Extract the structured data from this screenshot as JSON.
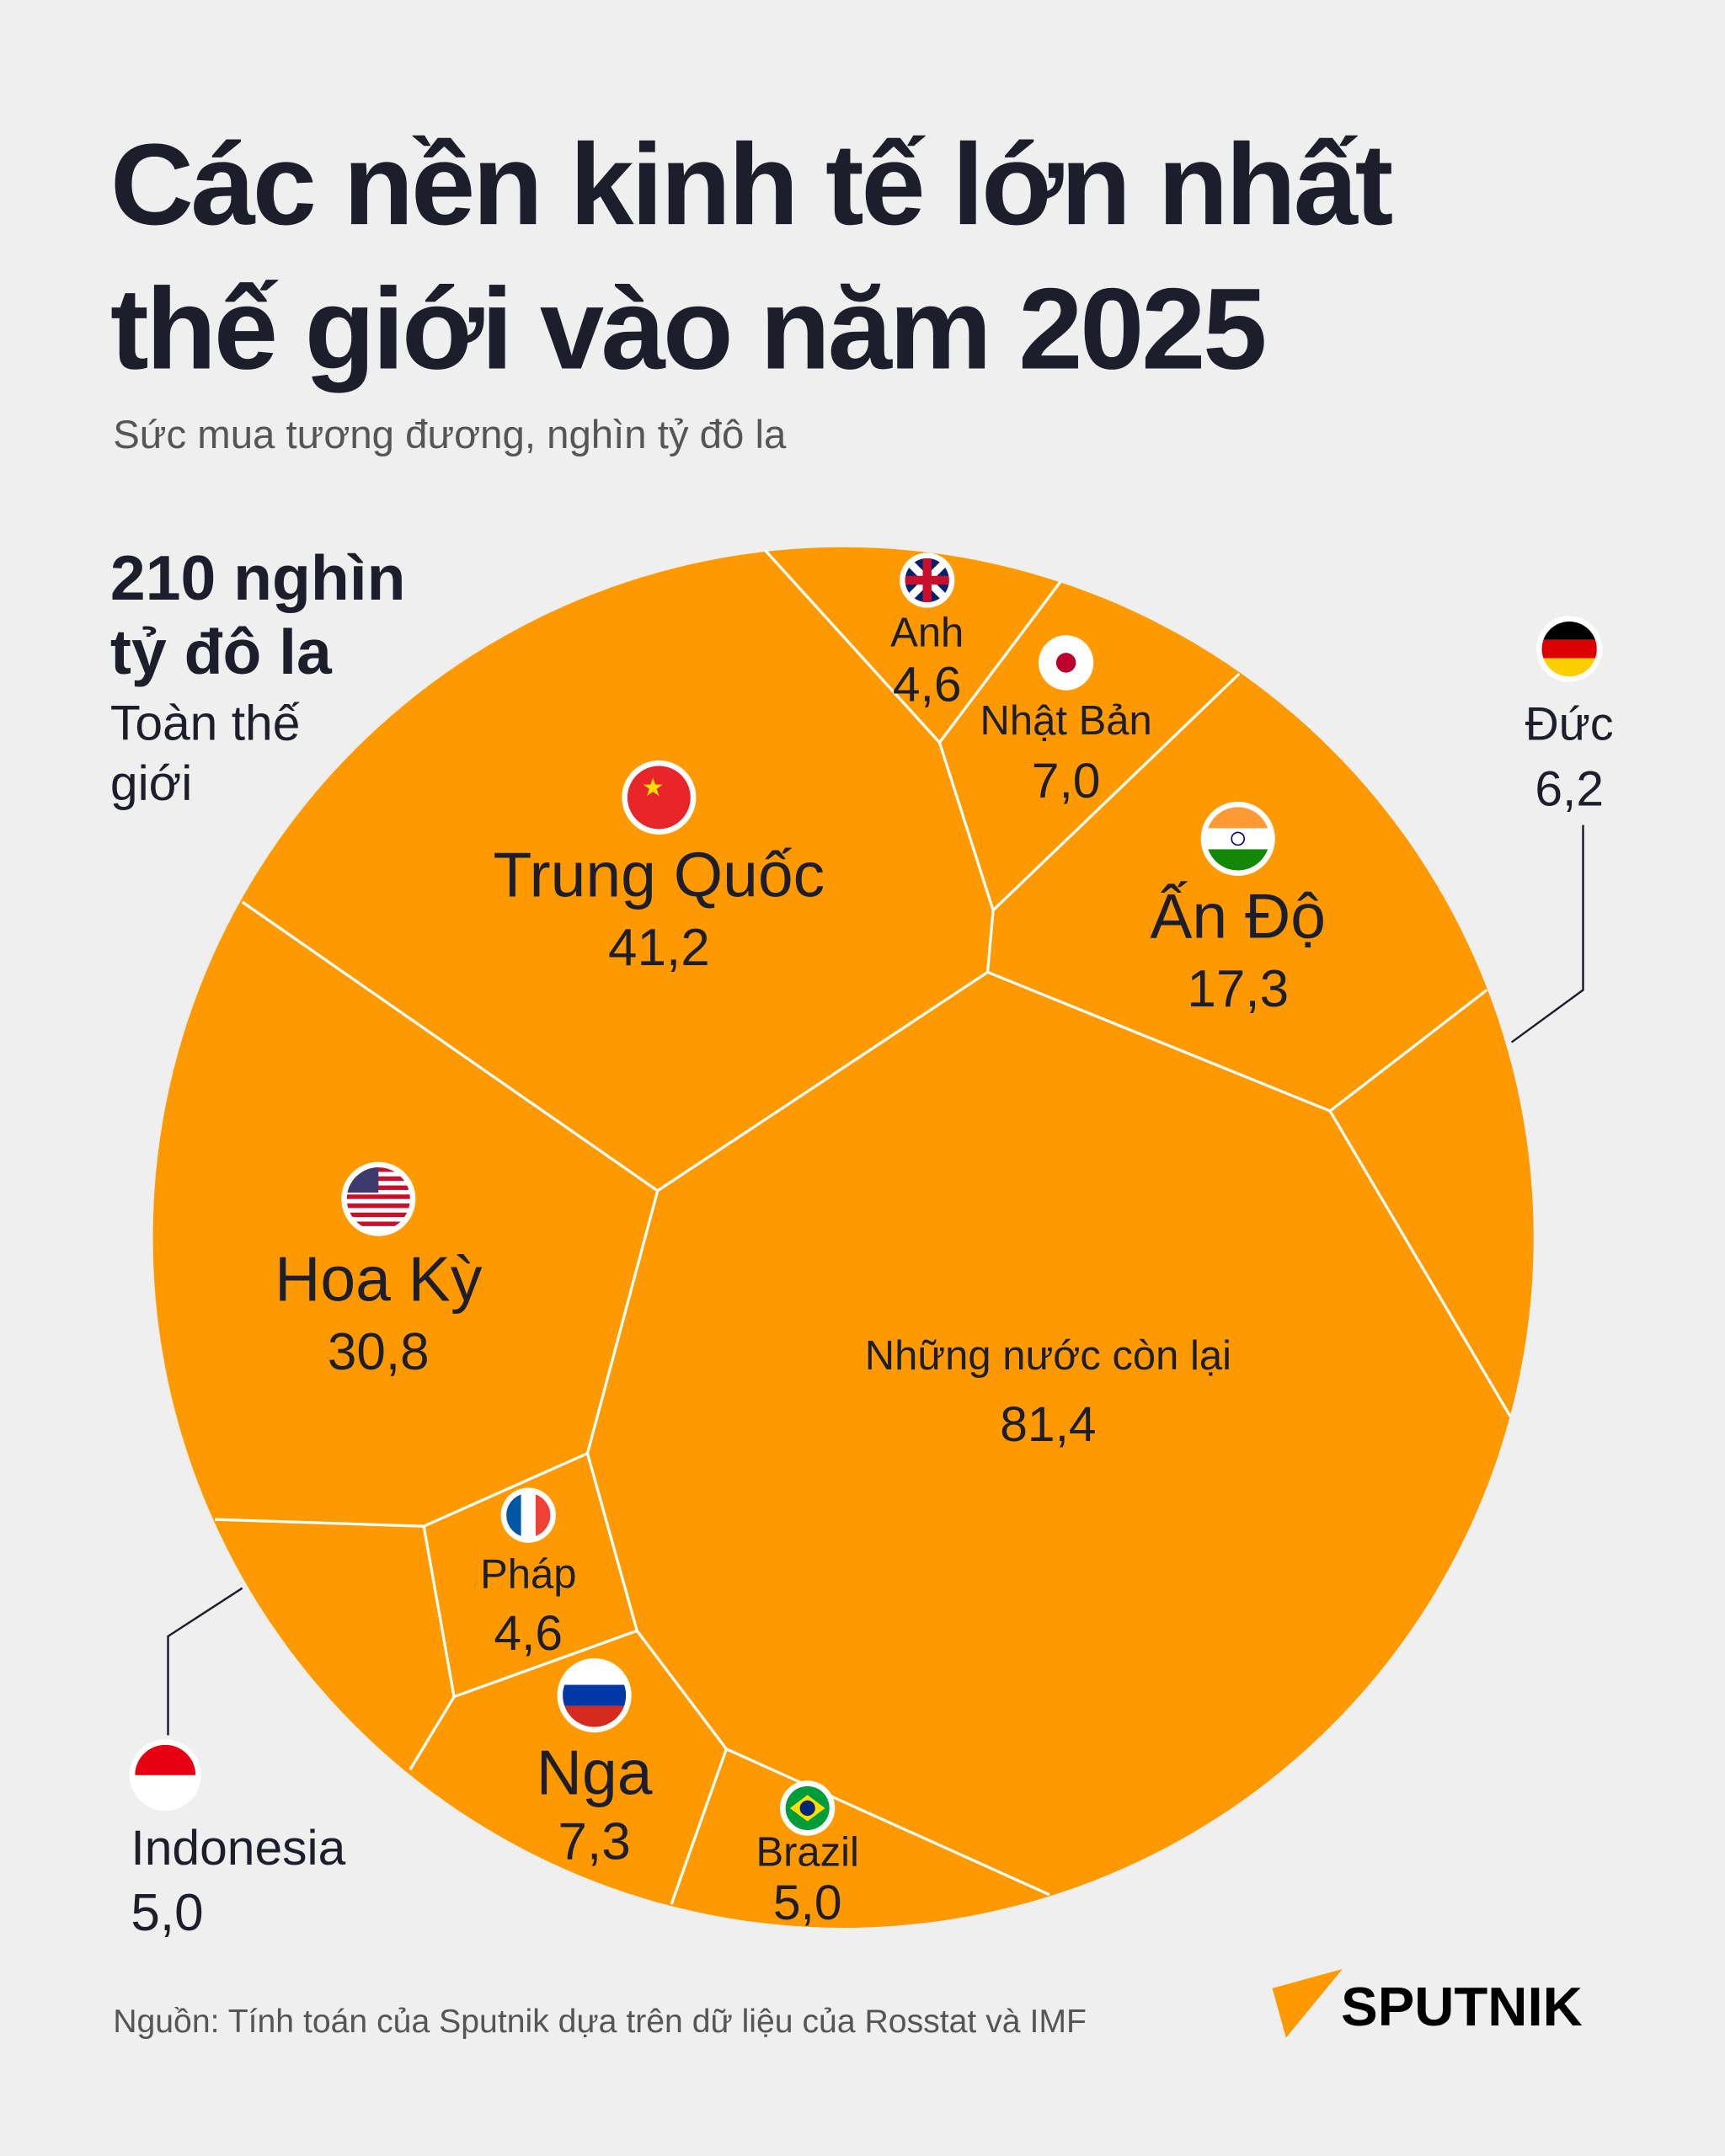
{
  "title_line1": "Các nền kinh tế lớn nhất",
  "title_line2": "thế giới vào năm 2025",
  "subtitle": "Sức mua tương đương, nghìn tỷ đô la",
  "total": {
    "line1": "210 nghìn",
    "line2": "tỷ đô la",
    "label1": "Toàn thế",
    "label2": "giới"
  },
  "source": "Nguồn: Tính toán của Sputnik dựa trên dữ liệu của Rosstat và IMF",
  "logo": "SPUTNIK",
  "colors": {
    "cell": "#ff9900",
    "background": "#efefef",
    "text": "#1c1f2b"
  },
  "chart_data": {
    "type": "voronoi-treemap",
    "unit": "nghìn tỷ đô la",
    "total": 210,
    "items": [
      {
        "name": "Những nước còn lại",
        "value": "81,4"
      },
      {
        "name": "Trung Quốc",
        "value": "41,2",
        "flag": "china"
      },
      {
        "name": "Hoa Kỳ",
        "value": "30,8",
        "flag": "usa"
      },
      {
        "name": "Ấn Độ",
        "value": "17,3",
        "flag": "india"
      },
      {
        "name": "Nga",
        "value": "7,3",
        "flag": "russia"
      },
      {
        "name": "Nhật Bản",
        "value": "7,0",
        "flag": "japan"
      },
      {
        "name": "Đức",
        "value": "6,2",
        "flag": "germany"
      },
      {
        "name": "Indonesia",
        "value": "5,0",
        "flag": "indonesia"
      },
      {
        "name": "Brazil",
        "value": "5,0",
        "flag": "brazil"
      },
      {
        "name": "Anh",
        "value": "4,6",
        "flag": "uk"
      },
      {
        "name": "Pháp",
        "value": "4,6",
        "flag": "france"
      }
    ]
  }
}
